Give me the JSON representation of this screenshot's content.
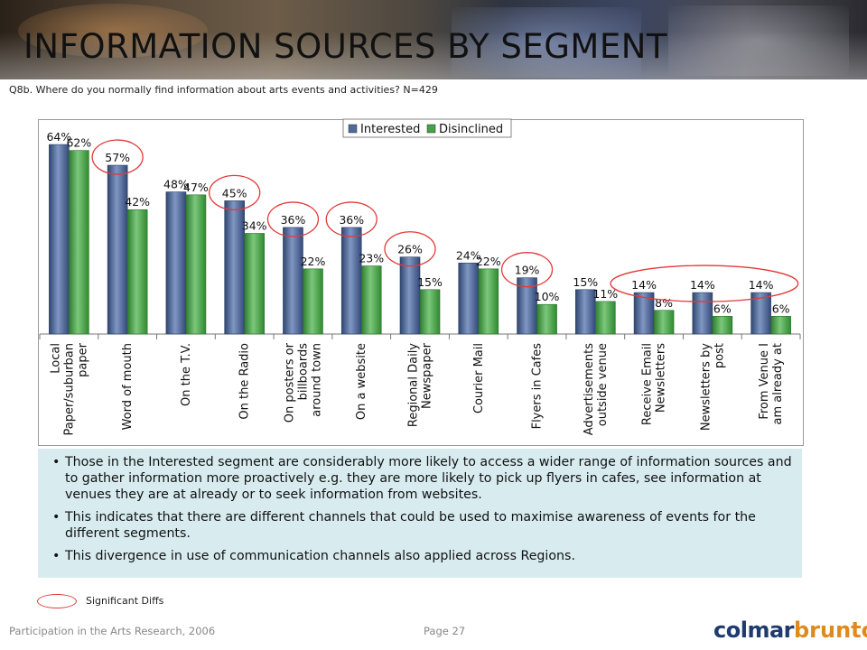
{
  "title": "INFORMATION SOURCES BY SEGMENT",
  "question": "Q8b. Where do you normally find information about arts events and activities? N=429",
  "chart_data": {
    "type": "bar",
    "title": "",
    "xlabel": "",
    "ylabel": "",
    "ylim": [
      0,
      70
    ],
    "grid": false,
    "legend_position": "top-center",
    "categories": [
      "Local Paper/suburban paper",
      "Word of mouth",
      "On the T.V.",
      "On the Radio",
      "On posters or billboards around town",
      "On a website",
      "Regional Daily Newspaper",
      "Courier Mail",
      "Flyers in Cafes",
      "Advertisements outside venue",
      "Receive Email Newsletters",
      "Newsletters by post",
      "From Venue I am already at"
    ],
    "category_lines": [
      [
        "Local",
        "Paper/suburban",
        "paper"
      ],
      [
        "Word of mouth"
      ],
      [
        "On the T.V."
      ],
      [
        "On the Radio"
      ],
      [
        "On posters or",
        "billboards",
        "around town"
      ],
      [
        "On a website"
      ],
      [
        "Regional Daily",
        "Newspaper"
      ],
      [
        "Courier Mail"
      ],
      [
        "Flyers in Cafes"
      ],
      [
        "Advertisements",
        "outside venue"
      ],
      [
        "Receive Email",
        "Newsletters"
      ],
      [
        "Newsletters by",
        "post"
      ],
      [
        "From Venue I",
        "am already at"
      ]
    ],
    "series": [
      {
        "name": "Interested",
        "color": "#4f6b9a",
        "values": [
          64,
          57,
          48,
          45,
          36,
          36,
          26,
          24,
          19,
          15,
          14,
          14,
          14
        ]
      },
      {
        "name": "Disinclined",
        "color": "#48a048",
        "values": [
          62,
          42,
          47,
          34,
          22,
          23,
          15,
          22,
          10,
          11,
          8,
          6,
          6
        ]
      }
    ],
    "data_labels": [
      [
        "64%",
        "57%",
        "48%",
        "45%",
        "36%",
        "36%",
        "26%",
        "24%",
        "19%",
        "15%",
        "14%",
        "14%",
        "14%"
      ],
      [
        "62%",
        "42%",
        "47%",
        "34%",
        "22%",
        "23%",
        "15%",
        "22%",
        "10%",
        "11%",
        "8%",
        "6%",
        "6%"
      ]
    ],
    "significant_category_indices": [
      1,
      3,
      4,
      5,
      6,
      8
    ],
    "significant_group_indices": [
      10,
      11,
      12
    ],
    "significant_color": "#e23a3a"
  },
  "notes": [
    "Those in the Interested segment are considerably more likely to access a wider range of information sources and to gather information more proactively e.g. they are more likely to pick up flyers in cafes, see information at venues they are at already or to seek information from websites.",
    "This indicates that there are different channels that could be used to maximise awareness of events for the different segments.",
    "This divergence in use of communication channels also applied across Regions."
  ],
  "legend_note": "Significant Diffs",
  "footer": {
    "left": "Participation in the Arts Research, 2006",
    "page": "Page 27",
    "logo_part1": "colmar",
    "logo_part2": "brunton"
  }
}
